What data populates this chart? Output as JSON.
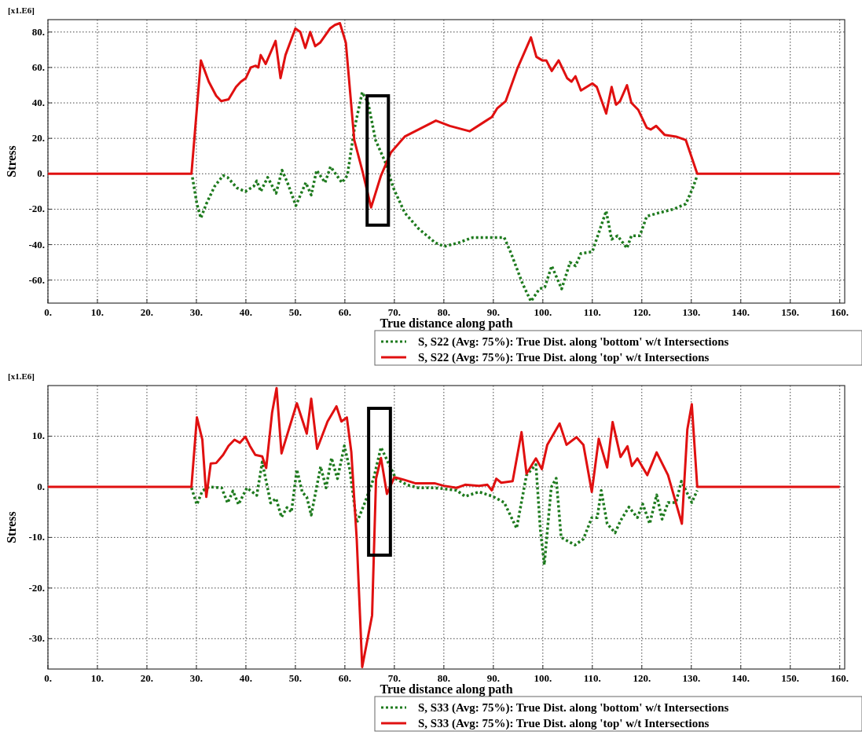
{
  "chart_data": [
    {
      "type": "line",
      "xlabel": "True distance along path",
      "ylabel": "Stress",
      "annotations": [
        "[x1.E6]"
      ],
      "xlim": [
        0,
        161
      ],
      "ylim": [
        -73,
        87
      ],
      "xticks": [
        {
          "value": 0,
          "label": "0."
        },
        {
          "value": 10,
          "label": "10."
        },
        {
          "value": 20,
          "label": "20."
        },
        {
          "value": 30,
          "label": "30."
        },
        {
          "value": 40,
          "label": "40."
        },
        {
          "value": 50,
          "label": "50."
        },
        {
          "value": 60,
          "label": "60."
        },
        {
          "value": 70,
          "label": "70."
        },
        {
          "value": 80,
          "label": "80."
        },
        {
          "value": 90,
          "label": "90."
        },
        {
          "value": 100,
          "label": "100."
        },
        {
          "value": 110,
          "label": "110."
        },
        {
          "value": 120,
          "label": "120."
        },
        {
          "value": 130,
          "label": "130."
        },
        {
          "value": 140,
          "label": "140."
        },
        {
          "value": 150,
          "label": "150."
        },
        {
          "value": 160,
          "label": "160."
        }
      ],
      "yticks": [
        {
          "value": -60,
          "label": "-60."
        },
        {
          "value": -40,
          "label": "-40."
        },
        {
          "value": -20,
          "label": "-20."
        },
        {
          "value": 0,
          "label": "0."
        },
        {
          "value": 20,
          "label": "20."
        },
        {
          "value": 40,
          "label": "40."
        },
        {
          "value": 60,
          "label": "60."
        },
        {
          "value": 80,
          "label": "80."
        }
      ],
      "grid": true,
      "legend": "bottom right",
      "series": [
        {
          "name": "S, S22 (Avg: 75%): True Dist. along 'bottom' w/t Intersections",
          "color": "#1e7a1e",
          "line_style": "dotted",
          "x": [
            29.2,
            30.1,
            30.9,
            32,
            33.7,
            35.4,
            36.3,
            38.2,
            39.9,
            41.6,
            42.2,
            43,
            44.4,
            46.1,
            47.3,
            48.4,
            50.1,
            52.1,
            53.2,
            54.3,
            56,
            57.1,
            59.4,
            60.5,
            61.9,
            63.5,
            64.7,
            66.2,
            68.1,
            69.8,
            72.1,
            74.9,
            78.3,
            80.1,
            82.9,
            85.8,
            89.7,
            92.2,
            93.6,
            95.9,
            97.6,
            99.3,
            100.4,
            101.8,
            103.8,
            105.5,
            106.6,
            107.7,
            110,
            111.7,
            112.8,
            113.9,
            115.1,
            117,
            117.9,
            119.6,
            121,
            123.5,
            126.4,
            128.9,
            130.3,
            131.2
          ],
          "values": [
            -2,
            -17,
            -25,
            -17,
            -7,
            -1,
            -2,
            -8,
            -10,
            -7,
            -4,
            -10,
            -2,
            -11,
            2,
            -5,
            -18,
            -5,
            -12,
            2,
            -5,
            4,
            -5,
            -1,
            25,
            46,
            40,
            19,
            7,
            -8,
            -22,
            -31,
            -39,
            -41,
            -39,
            -36,
            -36,
            -36,
            -45,
            -62,
            -72,
            -65,
            -64,
            -52,
            -65,
            -50,
            -52,
            -45,
            -44,
            -30,
            -21,
            -37,
            -35,
            -42,
            -35,
            -35,
            -24,
            -22,
            -20,
            -17,
            -8,
            -1
          ]
        },
        {
          "name": "S, S22 (Avg: 75%): True Dist. along 'top' w/t Intersections",
          "color": "#e01010",
          "line_style": "solid",
          "x": [
            0,
            29,
            30.9,
            32.5,
            34,
            35,
            36.5,
            38,
            39,
            40,
            41,
            42,
            42.5,
            43,
            44,
            46,
            47,
            48,
            50,
            51,
            52,
            53,
            54,
            55,
            57,
            58,
            59,
            60.2,
            61.9,
            63.6,
            65.3,
            67.3,
            69.3,
            72.1,
            74.9,
            78.4,
            81.2,
            85.2,
            88,
            89.7,
            90.8,
            92.5,
            94.8,
            97.6,
            98.7,
            99.9,
            100.7,
            101.8,
            103.2,
            104.9,
            105.8,
            106.6,
            107.7,
            110,
            110.9,
            112.8,
            113.9,
            114.8,
            115.6,
            117,
            117.9,
            119.3,
            121,
            121.8,
            122.9,
            124.6,
            126.9,
            128.9,
            131.2,
            160
          ],
          "values": [
            0,
            0,
            64,
            52,
            44,
            41,
            42,
            49,
            52,
            54,
            60,
            61,
            60,
            67,
            62,
            75,
            54,
            67,
            82,
            80,
            71,
            80,
            72,
            74,
            82,
            84,
            85,
            74,
            19,
            1,
            -19,
            -1,
            12,
            21,
            25,
            30,
            27,
            24,
            29,
            32,
            37,
            41,
            59,
            77,
            66,
            64,
            64,
            58,
            64,
            54,
            52,
            55,
            47,
            51,
            49,
            34,
            49,
            39,
            41,
            50,
            40,
            36,
            26,
            25,
            27,
            22,
            21,
            19,
            0,
            0
          ]
        }
      ]
    },
    {
      "type": "line",
      "xlabel": "True distance along path",
      "ylabel": "Stress",
      "annotations": [
        "[x1.E6]"
      ],
      "xlim": [
        0,
        161
      ],
      "ylim": [
        -36,
        20
      ],
      "xticks": [
        {
          "value": 0,
          "label": "0."
        },
        {
          "value": 10,
          "label": "10."
        },
        {
          "value": 20,
          "label": "20."
        },
        {
          "value": 30,
          "label": "30."
        },
        {
          "value": 40,
          "label": "40."
        },
        {
          "value": 50,
          "label": "50."
        },
        {
          "value": 60,
          "label": "60."
        },
        {
          "value": 70,
          "label": "70."
        },
        {
          "value": 80,
          "label": "80."
        },
        {
          "value": 90,
          "label": "90."
        },
        {
          "value": 100,
          "label": "100."
        },
        {
          "value": 110,
          "label": "110."
        },
        {
          "value": 120,
          "label": "120."
        },
        {
          "value": 130,
          "label": "130."
        },
        {
          "value": 140,
          "label": "140."
        },
        {
          "value": 150,
          "label": "150."
        },
        {
          "value": 160,
          "label": "160."
        }
      ],
      "yticks": [
        {
          "value": -30,
          "label": "-30."
        },
        {
          "value": -20,
          "label": "-20."
        },
        {
          "value": -10,
          "label": "-10."
        },
        {
          "value": 0,
          "label": "0."
        },
        {
          "value": 10,
          "label": "10."
        }
      ],
      "grid": true,
      "legend": "bottom right",
      "series": [
        {
          "name": "S, S33 (Avg: 75%): True Dist. along 'bottom' w/t Intersections",
          "color": "#1e7a1e",
          "line_style": "dotted",
          "x": [
            29,
            30.1,
            31.2,
            32.6,
            35.1,
            36.3,
            37.4,
            38.5,
            40.2,
            42.2,
            43.3,
            45,
            46.1,
            47.2,
            48.3,
            49.2,
            50.3,
            51.4,
            52.3,
            53.2,
            55.1,
            56.2,
            57.3,
            58.5,
            59.9,
            61,
            62.4,
            64.1,
            65.8,
            67.3,
            68.6,
            70.3,
            72.5,
            74.8,
            78.1,
            80,
            82.6,
            84.3,
            87.1,
            89.9,
            92.2,
            94.7,
            96.7,
            98.6,
            99.5,
            100.3,
            101.7,
            102.7,
            103.7,
            106.5,
            108.2,
            109.9,
            111,
            111.8,
            113,
            114.6,
            115.7,
            117.4,
            119.1,
            120.2,
            121.6,
            123,
            124.1,
            125.3,
            126.9,
            128,
            130.1,
            131.2
          ],
          "values": [
            -0.2,
            -3.5,
            -0.8,
            0,
            -0.2,
            -3.2,
            -0.8,
            -3.5,
            -0.2,
            -1.7,
            4.9,
            -3.2,
            -2.3,
            -6,
            -4.1,
            -5,
            3.4,
            -1.1,
            -2,
            -5.6,
            4,
            -0.2,
            5.7,
            1.6,
            8.1,
            3.4,
            -7.1,
            -3,
            1.6,
            7.8,
            5.1,
            1.6,
            0.4,
            -0.2,
            -0.2,
            -0.4,
            -0.7,
            -1.9,
            -1,
            -1.9,
            -3.1,
            -8.2,
            2.3,
            4.4,
            -8.5,
            -15.4,
            -0.1,
            1.7,
            -10,
            -11.5,
            -10.3,
            -6.1,
            -6.1,
            -0.7,
            -7.3,
            -9.1,
            -6.7,
            -4,
            -6.1,
            -3.4,
            -7.3,
            -1.6,
            -6.4,
            -3.1,
            -3.1,
            1.1,
            -3.1,
            -0.7
          ]
        },
        {
          "name": "S, S33 (Avg: 75%): True Dist. along 'top' w/t Intersections",
          "color": "#e01010",
          "line_style": "solid",
          "x": [
            0,
            29,
            30.1,
            31.2,
            32,
            32.9,
            34,
            35.4,
            36.5,
            37.7,
            38.8,
            39.9,
            40.8,
            41.9,
            43.3,
            44.1,
            45.3,
            46.2,
            47.2,
            48.6,
            50.3,
            52.3,
            53.2,
            54.4,
            56.5,
            58.3,
            59.3,
            60.4,
            61.3,
            62.4,
            63.5,
            65.5,
            66.3,
            67.3,
            68.5,
            70,
            71.9,
            74.2,
            78.1,
            80,
            82.6,
            84.3,
            87.1,
            88.8,
            89.7,
            90.6,
            91.6,
            93.9,
            95.7,
            96.7,
            98.6,
            99.8,
            100.9,
            103.4,
            104.8,
            106.8,
            108.2,
            109.9,
            111.3,
            113,
            114.1,
            115.7,
            117.1,
            118,
            119.1,
            121.1,
            123,
            125.3,
            128.1,
            129.2,
            130.1,
            131.2,
            160
          ],
          "values": [
            0,
            0,
            13.7,
            9.3,
            -2,
            4.6,
            4.7,
            6.3,
            8.1,
            9.3,
            8.7,
            9.9,
            8.1,
            6.3,
            6,
            3.7,
            14.7,
            19.5,
            6.6,
            11.1,
            16.5,
            10.5,
            17.4,
            7.5,
            12.9,
            15.9,
            12.9,
            13.7,
            6.9,
            -10.4,
            -35.6,
            -25.4,
            1.6,
            5.7,
            -1.4,
            1.9,
            1.4,
            0.7,
            0.7,
            0.2,
            -0.2,
            0.4,
            0.2,
            0.4,
            -0.7,
            1.6,
            0.8,
            1.1,
            10.8,
            2.6,
            5.6,
            3.5,
            8.3,
            12.5,
            8.3,
            9.8,
            8.3,
            -1,
            9.5,
            3.8,
            12.8,
            5.9,
            8,
            4.1,
            5.6,
            2.3,
            6.8,
            2.3,
            -7.3,
            11.3,
            16.3,
            0,
            0
          ]
        }
      ]
    }
  ]
}
